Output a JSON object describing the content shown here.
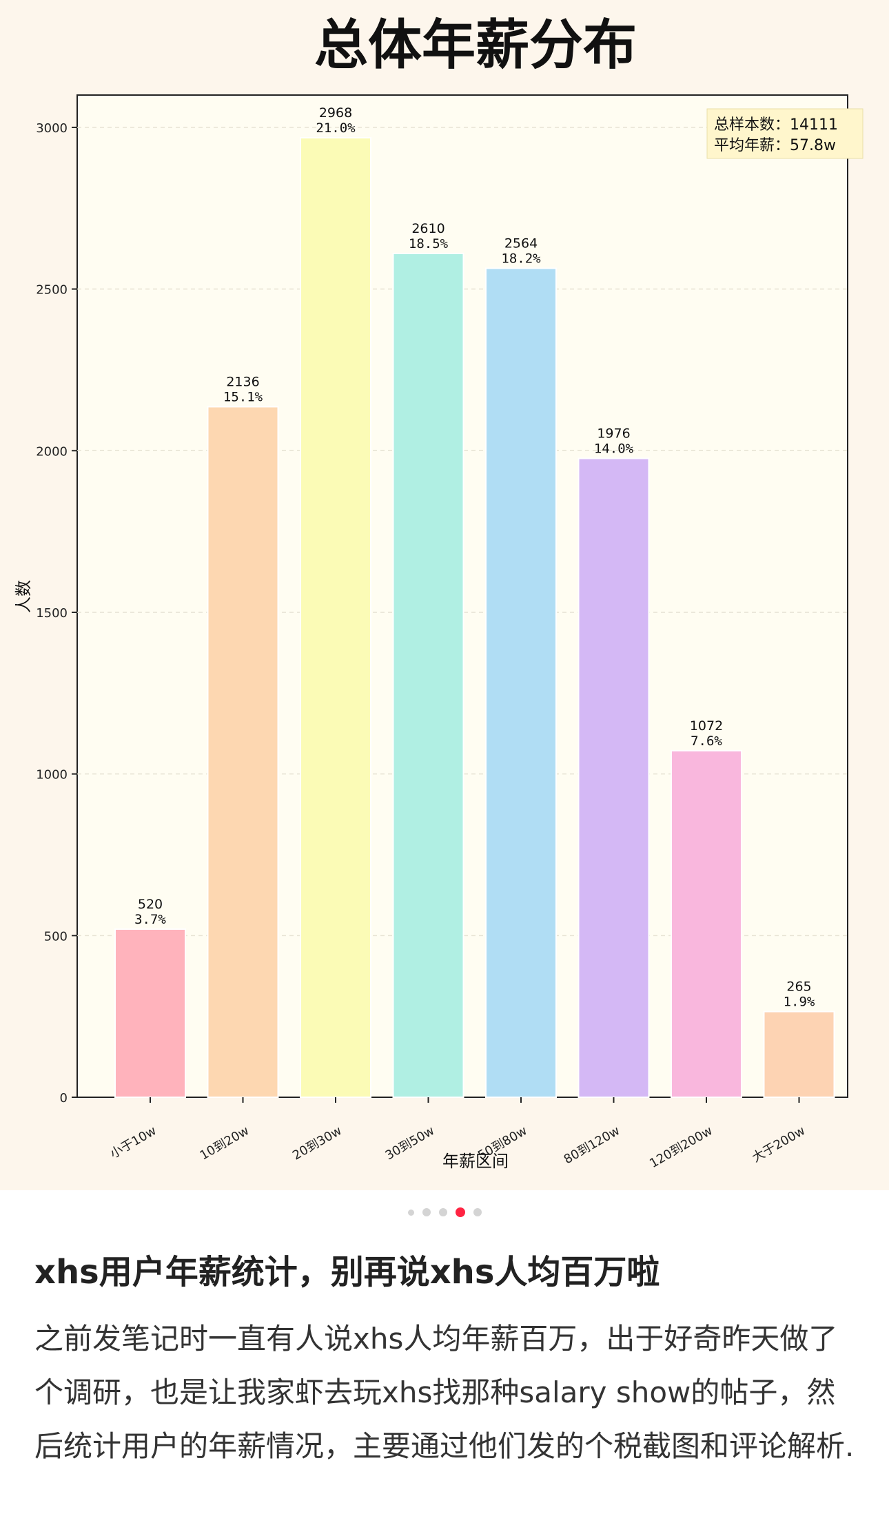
{
  "post": {
    "title": "xhs用户年薪统计，别再说xhs人均百万啦",
    "body": "之前发笔记时一直有人说xhs人均年薪百万，出于好奇昨天做了个调研，也是让我家虾去玩xhs找那种salary show的帖子，然后统计用户的年薪情况，主要通过他们发的个税截图和评论解析."
  },
  "carousel": {
    "count": 5,
    "active_index": 3
  },
  "colors": {
    "accent": "#ff2442",
    "plot_bg": "#fffdf2",
    "panel_bg": "#fdf6ec",
    "stats_box_bg": "#fff6cc"
  },
  "chart_data": {
    "type": "bar",
    "title": "总体年薪分布",
    "xlabel": "年薪区间",
    "ylabel": "人数",
    "ylim": [
      0,
      3100
    ],
    "yticks": [
      "0",
      "500",
      "1000",
      "1500",
      "2000",
      "2500",
      "3000"
    ],
    "grid": true,
    "categories": [
      "小于10w",
      "10到20w",
      "20到30w",
      "30到50w",
      "50到80w",
      "80到120w",
      "120到200w",
      "大于200w"
    ],
    "values": [
      520,
      2136,
      2968,
      2610,
      2564,
      1976,
      1072,
      265
    ],
    "count_labels": [
      "520",
      "2136",
      "2968",
      "2610",
      "2564",
      "1976",
      "1072",
      "265"
    ],
    "percent_labels": [
      "3.7%",
      "15.1%",
      "21.0%",
      "18.5%",
      "18.2%",
      "14.0%",
      "7.6%",
      "1.9%"
    ],
    "bar_colors": [
      "#ffb3bc",
      "#fdd7b1",
      "#fbfbb6",
      "#b0efe3",
      "#b0ddf4",
      "#d4b8f5",
      "#f9b7dd",
      "#fdd3b3"
    ],
    "stats_box": {
      "line1": "总样本数：14111",
      "line2": "平均年薪：57.8w",
      "placement": "top-right"
    }
  }
}
